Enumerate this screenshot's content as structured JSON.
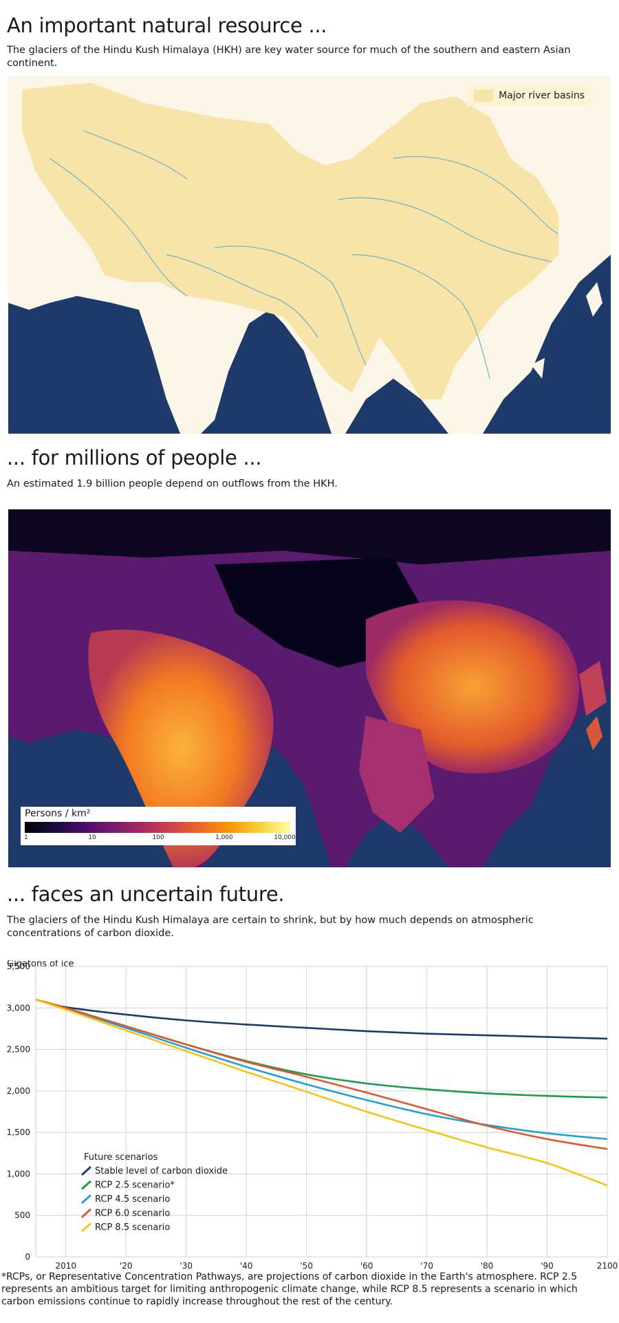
{
  "section1": {
    "title": "An important natural resource ...",
    "subtitle": "The glaciers of the Hindu Kush Himalaya (HKH) are key water source for much of the southern and eastern Asian continent.",
    "legend_label": "Major river basins"
  },
  "section2": {
    "title": "... for millions of people ...",
    "subtitle": "An estimated 1.9 billion people depend on outflows from the HKH.",
    "legend_title": "Persons / km²",
    "legend_ticks": [
      "1",
      "10",
      "100",
      "1,000",
      "10,000"
    ]
  },
  "section3": {
    "title": "... faces an uncertain future.",
    "subtitle": "The glaciers of the Hindu Kush Himalaya are certain to shrink, but by how much depends on atmospheric concentrations of carbon dioxide."
  },
  "chart_data": {
    "type": "line",
    "ylabel": "Gigatons of ice",
    "xlim": [
      2005,
      2100
    ],
    "ylim": [
      0,
      3500
    ],
    "y_ticks": [
      0,
      500,
      1000,
      1500,
      2000,
      2500,
      3000,
      3500
    ],
    "y_tick_labels": [
      "0",
      "500",
      "1,000",
      "1,500",
      "2,000",
      "2,500",
      "3,000",
      "3,500"
    ],
    "x_ticks": [
      2010,
      2020,
      2030,
      2040,
      2050,
      2060,
      2070,
      2080,
      2090,
      2100
    ],
    "x_tick_labels": [
      "2010",
      "'20",
      "'30",
      "'40",
      "'50",
      "'60",
      "'70",
      "'80",
      "'90",
      "2100"
    ],
    "grid": true,
    "legend_title": "Future scenarios",
    "legend_position": "bottom-left",
    "x": [
      2005,
      2010,
      2020,
      2030,
      2040,
      2050,
      2060,
      2070,
      2080,
      2090,
      2100
    ],
    "series": [
      {
        "name": "Stable level of carbon dioxide",
        "color": "#1b3a6e",
        "values": [
          3100,
          3010,
          2920,
          2850,
          2800,
          2760,
          2720,
          2690,
          2670,
          2650,
          2630
        ]
      },
      {
        "name": "RCP 2.5 scenario*",
        "color": "#1b9a4a",
        "values": [
          3100,
          3000,
          2780,
          2560,
          2360,
          2200,
          2090,
          2020,
          1970,
          1940,
          1920
        ]
      },
      {
        "name": "RCP 4.5 scenario",
        "color": "#1fa0db",
        "values": [
          3100,
          2990,
          2760,
          2520,
          2290,
          2080,
          1890,
          1720,
          1590,
          1490,
          1420
        ]
      },
      {
        "name": "RCP 6.0 scenario",
        "color": "#e0582a",
        "values": [
          3100,
          3000,
          2780,
          2560,
          2350,
          2170,
          1980,
          1780,
          1580,
          1420,
          1300
        ]
      },
      {
        "name": "RCP 8.5 scenario",
        "color": "#f7c315",
        "values": [
          3100,
          2980,
          2730,
          2480,
          2230,
          1990,
          1750,
          1530,
          1320,
          1130,
          860
        ]
      }
    ]
  },
  "footnote": "*RCPs, or Representative Concentration Pathways, are projections of carbon dioxide in the Earth's atmosphere. RCP 2.5 represents an ambitious target for limiting anthropogenic climate change, while RCP 8.5 represents a scenario in which carbon emissions continue to rapidly increase throughout the rest of the century."
}
